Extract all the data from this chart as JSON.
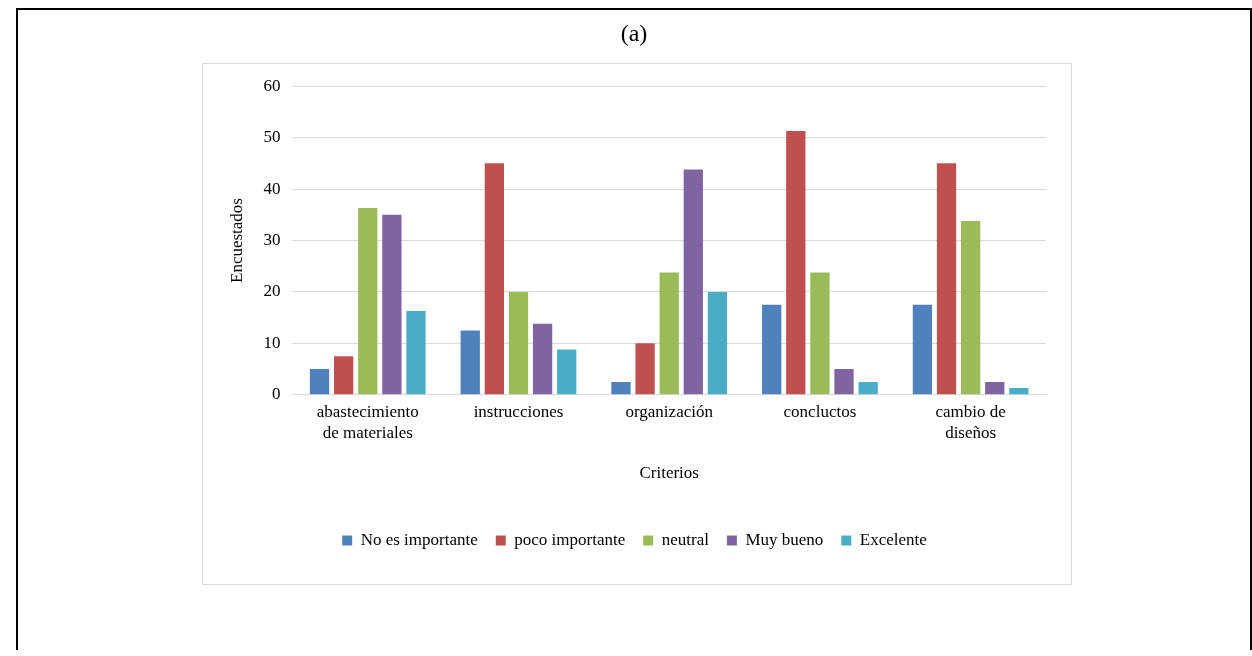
{
  "chart_data": {
    "type": "bar",
    "title": "(a)",
    "xlabel": "Criterios",
    "ylabel": "Encuestados",
    "categories": [
      "abastecimiento de materiales",
      "instrucciones",
      "organización",
      "concluctos",
      "cambio de diseños"
    ],
    "series": [
      {
        "name": "No es importante",
        "color": "#4f81bd",
        "values": [
          5,
          12.5,
          2.5,
          17.5,
          17.5
        ]
      },
      {
        "name": "poco importante",
        "color": "#c0504d",
        "values": [
          7.5,
          45,
          10,
          51.3,
          45
        ]
      },
      {
        "name": "neutral",
        "color": "#9bbb59",
        "values": [
          36.3,
          20,
          23.8,
          23.8,
          33.8
        ]
      },
      {
        "name": "Muy bueno",
        "color": "#8064a2",
        "values": [
          35,
          13.8,
          43.8,
          5,
          2.5
        ]
      },
      {
        "name": "Excelente",
        "color": "#4bacc6",
        "values": [
          16.3,
          8.8,
          20,
          2.5,
          1.3
        ]
      }
    ],
    "ylim": [
      0,
      60
    ],
    "yticks": [
      0,
      10,
      20,
      30,
      40,
      50,
      60
    ],
    "grid": "y",
    "legend": "bottom"
  }
}
